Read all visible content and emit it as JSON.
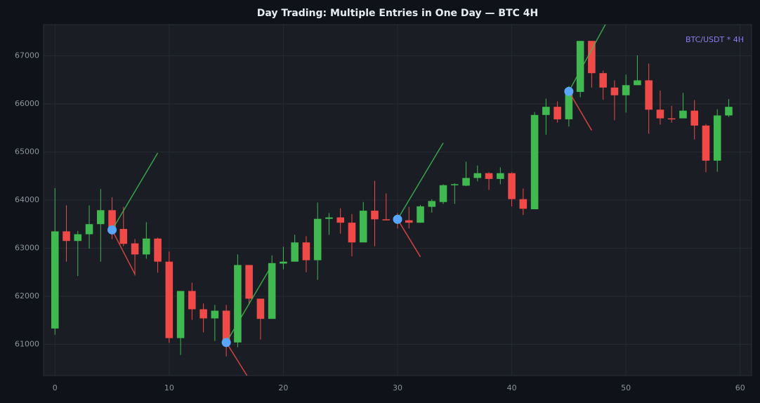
{
  "chart_data": {
    "type": "candlestick",
    "title": "Day Trading: Multiple Entries in One Day — BTC 4H",
    "annotation": "BTC/USDT * 4H",
    "x": [
      0,
      1,
      2,
      3,
      4,
      5,
      6,
      7,
      8,
      9,
      10,
      11,
      12,
      13,
      14,
      15,
      16,
      17,
      18,
      19,
      20,
      21,
      22,
      23,
      24,
      25,
      26,
      27,
      28,
      29,
      30,
      31,
      32,
      33,
      34,
      35,
      36,
      37,
      38,
      39,
      40,
      41,
      42,
      43,
      44,
      45,
      46,
      47,
      48,
      49,
      50,
      51,
      52,
      53,
      54,
      55,
      56,
      57,
      58,
      59
    ],
    "open": [
      61330,
      63350,
      63150,
      63290,
      63500,
      63790,
      63400,
      63100,
      62870,
      63200,
      62720,
      61130,
      62110,
      61730,
      61540,
      61700,
      61040,
      62650,
      61950,
      61530,
      62680,
      62720,
      63120,
      62750,
      63610,
      63640,
      63530,
      63120,
      63780,
      63600,
      63600,
      63580,
      63530,
      63860,
      63960,
      64310,
      64300,
      64460,
      64560,
      64440,
      64560,
      64020,
      63810,
      65770,
      65940,
      65680,
      66250,
      67310,
      66640,
      66340,
      66180,
      66390,
      66490,
      65880,
      65700,
      65700,
      65860,
      65550,
      64820,
      65760
    ],
    "high": [
      64250,
      63890,
      63360,
      63890,
      64230,
      64060,
      63860,
      63190,
      63540,
      63220,
      62930,
      62110,
      62280,
      61850,
      61820,
      61820,
      62870,
      62650,
      61950,
      62850,
      63030,
      63280,
      63250,
      63950,
      63730,
      63830,
      63710,
      63960,
      64400,
      64140,
      63730,
      63860,
      63900,
      64020,
      64330,
      64350,
      64800,
      64720,
      64580,
      64680,
      64580,
      64240,
      65830,
      66110,
      66050,
      66370,
      67310,
      67310,
      66690,
      66490,
      66610,
      67010,
      66840,
      66280,
      65960,
      66230,
      66080,
      65580,
      65890,
      66100
    ],
    "low": [
      61200,
      62720,
      62420,
      62990,
      62720,
      63190,
      63040,
      62430,
      62780,
      62490,
      61030,
      60780,
      61510,
      61250,
      61070,
      60750,
      60940,
      61830,
      61100,
      61530,
      62560,
      62720,
      62500,
      62340,
      63280,
      63300,
      62830,
      63120,
      63040,
      63580,
      63410,
      63410,
      63530,
      63740,
      63920,
      63920,
      64290,
      64390,
      64210,
      64330,
      63870,
      63690,
      63810,
      65360,
      65610,
      65530,
      66140,
      66340,
      66090,
      65660,
      65820,
      66390,
      65380,
      65570,
      65610,
      65700,
      65260,
      64580,
      64590,
      65730
    ],
    "close": [
      63350,
      63150,
      63290,
      63500,
      63790,
      63400,
      63090,
      62870,
      63200,
      62720,
      61130,
      62110,
      61730,
      61540,
      61700,
      61040,
      62650,
      61950,
      61530,
      62690,
      62720,
      63120,
      62750,
      63610,
      63640,
      63530,
      63120,
      63780,
      63600,
      63580,
      63550,
      63530,
      63870,
      63980,
      64310,
      64330,
      64460,
      64560,
      64440,
      64560,
      64020,
      63820,
      65770,
      65940,
      65680,
      66250,
      67310,
      66640,
      66340,
      66180,
      66390,
      66490,
      65880,
      65700,
      65690,
      65860,
      65550,
      64820,
      65760,
      65940
    ],
    "up_color": "#3fb950",
    "down_color": "#f04a48",
    "entry_color": "#58a6ff",
    "entries": [
      {
        "x": 5,
        "y": 63380,
        "target_x": 9,
        "target_y": 64980,
        "stop_x": 7,
        "stop_y": 62460
      },
      {
        "x": 15,
        "y": 61040,
        "target_x": 19,
        "target_y": 62650,
        "stop_x": 17,
        "stop_y": 60280
      },
      {
        "x": 30,
        "y": 63600,
        "target_x": 34,
        "target_y": 65190,
        "stop_x": 32,
        "stop_y": 62820
      },
      {
        "x": 45,
        "y": 66260,
        "target_x": 49,
        "target_y": 68000,
        "stop_x": 47,
        "stop_y": 65450
      }
    ],
    "xlim": [
      -1,
      61
    ],
    "ylim": [
      60350,
      67650
    ],
    "xticks": [
      0,
      10,
      20,
      30,
      40,
      50,
      60
    ],
    "yticks": [
      61000,
      62000,
      63000,
      64000,
      65000,
      66000,
      67000
    ],
    "grid": true
  }
}
